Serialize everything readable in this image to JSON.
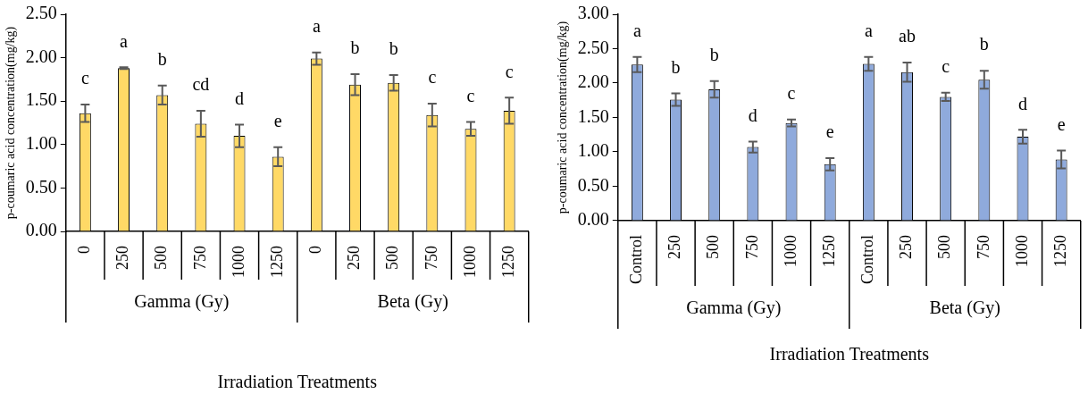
{
  "chart_data": [
    {
      "type": "bar",
      "ylabel": "p-coumaric acid concentration(mg/kg)",
      "xlabel": "Irradiation Treatments",
      "color": "#ffd966",
      "categories": [
        "0",
        "250",
        "500",
        "750",
        "1000",
        "1250",
        "0",
        "250",
        "500",
        "750",
        "1000",
        "1250"
      ],
      "values": [
        1.36,
        1.88,
        1.57,
        1.24,
        1.1,
        0.86,
        1.99,
        1.69,
        1.71,
        1.34,
        1.18,
        1.39
      ],
      "errors": [
        0.1,
        0.01,
        0.11,
        0.15,
        0.13,
        0.11,
        0.07,
        0.12,
        0.09,
        0.13,
        0.08,
        0.15
      ],
      "value_labels": [
        "c",
        "a",
        "b",
        "cd",
        "d",
        "e",
        "a",
        "b",
        "b",
        "c",
        "c",
        "c"
      ],
      "annotations": [
        "Gamma (Gy)",
        "Beta (Gy)"
      ],
      "ylim": [
        0,
        2.5
      ],
      "yticks": [
        {
          "value": 0,
          "label": "0.00"
        },
        {
          "value": 0.5,
          "label": "0.50"
        },
        {
          "value": 1,
          "label": "1.00"
        },
        {
          "value": 1.5,
          "label": "1.50"
        },
        {
          "value": 2,
          "label": "2.00"
        },
        {
          "value": 2.5,
          "label": "2.50"
        }
      ]
    },
    {
      "type": "bar",
      "ylabel": "p-coumaric acid concentration(mg/kg)",
      "xlabel": "Irradiation Treatments",
      "color": "#8faadc",
      "categories": [
        "Control",
        "250",
        "500",
        "750",
        "1000",
        "1250",
        "Control",
        "250",
        "500",
        "750",
        "1000",
        "1250"
      ],
      "values": [
        2.27,
        1.76,
        1.91,
        1.07,
        1.42,
        0.82,
        2.28,
        2.16,
        1.8,
        2.05,
        1.22,
        0.89
      ],
      "errors": [
        0.11,
        0.09,
        0.12,
        0.08,
        0.05,
        0.09,
        0.1,
        0.14,
        0.06,
        0.13,
        0.1,
        0.13
      ],
      "value_labels": [
        "a",
        "b",
        "b",
        "d",
        "c",
        "e",
        "a",
        "ab",
        "c",
        "b",
        "d",
        "e"
      ],
      "annotations": [
        "Gamma (Gy)",
        "Beta (Gy)"
      ],
      "ylim": [
        0,
        3
      ],
      "yticks": [
        {
          "value": 0,
          "label": "0.00"
        },
        {
          "value": 0.5,
          "label": "0.50"
        },
        {
          "value": 1,
          "label": "1.00"
        },
        {
          "value": 1.5,
          "label": "1.50"
        },
        {
          "value": 2,
          "label": "2.00"
        },
        {
          "value": 2.5,
          "label": "2.50"
        },
        {
          "value": 3,
          "label": "3.00"
        }
      ]
    }
  ]
}
